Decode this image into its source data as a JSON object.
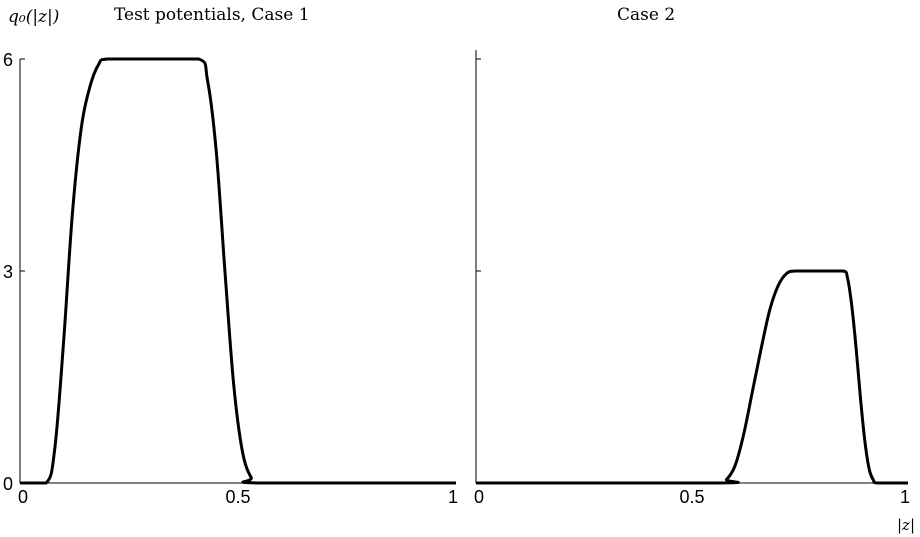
{
  "figure": {
    "ylabel_text": "q₀(|z|)",
    "xlabel_text": "|z|"
  },
  "chart_data": [
    {
      "type": "line",
      "title": "Test potentials, Case 1",
      "xlabel": "",
      "ylabel": "q₀(|z|)",
      "xlim": [
        0,
        1
      ],
      "ylim": [
        0,
        6
      ],
      "xticks": [
        0,
        0.5,
        1
      ],
      "xtick_labels": [
        "0",
        "0.5",
        "1"
      ],
      "yticks": [
        0,
        3,
        6
      ],
      "ytick_labels": [
        "0",
        "3",
        "6"
      ],
      "grid": false,
      "series": [
        {
          "x": [
            0,
            0.06,
            0.08,
            0.1,
            0.12,
            0.14,
            0.16,
            0.18,
            0.2,
            0.3,
            0.41,
            0.43,
            0.45,
            0.47,
            0.49,
            0.51,
            0.53,
            0.55,
            1
          ],
          "y": [
            0,
            0,
            0.5,
            2.0,
            3.8,
            5.0,
            5.6,
            5.92,
            6,
            6,
            6,
            5.7,
            4.7,
            3.0,
            1.4,
            0.45,
            0.08,
            0,
            0
          ]
        }
      ]
    },
    {
      "type": "line",
      "title": "Case 2",
      "xlabel": "|z|",
      "ylabel": "",
      "xlim": [
        0,
        1
      ],
      "ylim": [
        0,
        6
      ],
      "xticks": [
        0,
        0.5,
        1
      ],
      "xtick_labels": [
        "0",
        "0.5",
        "1"
      ],
      "yticks": [
        0,
        3,
        6
      ],
      "ytick_labels": [],
      "grid": false,
      "series": [
        {
          "x": [
            0,
            0.56,
            0.58,
            0.6,
            0.62,
            0.64,
            0.66,
            0.68,
            0.7,
            0.72,
            0.74,
            0.8,
            0.85,
            0.86,
            0.87,
            0.88,
            0.89,
            0.9,
            0.91,
            0.92,
            0.93,
            1
          ],
          "y": [
            0,
            0,
            0.05,
            0.25,
            0.7,
            1.3,
            1.9,
            2.45,
            2.8,
            2.97,
            3,
            3,
            3,
            2.9,
            2.5,
            1.9,
            1.2,
            0.6,
            0.2,
            0.04,
            0,
            0
          ]
        }
      ]
    }
  ]
}
